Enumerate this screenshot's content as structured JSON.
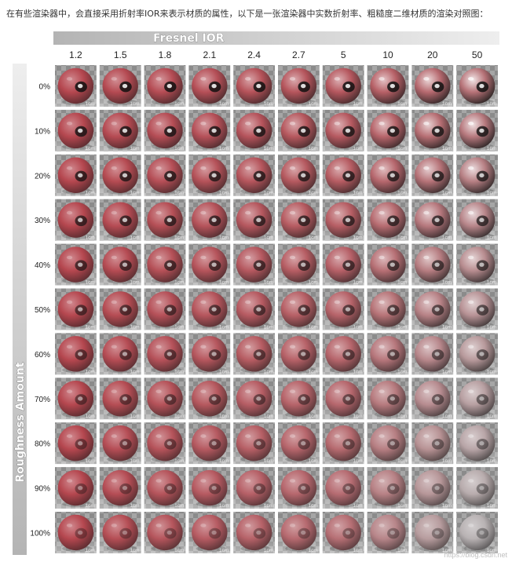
{
  "intro_text": "在有些渲染器中，会直接采用折射率IOR来表示材质的属性，以下是一张渲染器中实数折射率、粗糙度二维材质的渲染对照图：",
  "figure": {
    "column_axis_title": "Fresnel IOR",
    "row_axis_title": "Roughness Amount",
    "ior_values": [
      "1.2",
      "1.5",
      "1.8",
      "2.1",
      "2.4",
      "2.7",
      "5",
      "10",
      "20",
      "50"
    ],
    "roughness_values": [
      "0%",
      "10%",
      "20%",
      "30%",
      "40%",
      "50%",
      "60%",
      "70%",
      "80%",
      "90%",
      "100%"
    ],
    "scale_label": "1cm",
    "sphere_color": "#b5474f",
    "background_color": "#9a9a9a"
  },
  "watermark": "https://blog.csdn.net"
}
